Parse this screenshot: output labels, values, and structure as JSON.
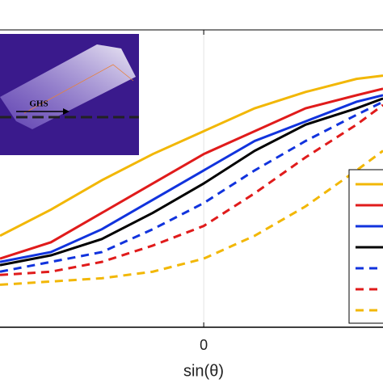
{
  "chart_data": {
    "type": "line",
    "x_label": "sin(θ)",
    "inset_text": "GHS",
    "x": [
      -1,
      -0.75,
      -0.5,
      -0.25,
      0,
      0.25,
      0.5,
      0.75,
      0.88
    ],
    "xlim": [
      -1,
      0.88
    ],
    "xticks": [
      0
    ],
    "ylim": [
      0,
      0.91
    ],
    "grid": true,
    "series": [
      {
        "color": "#f2b705",
        "dash": false,
        "values": [
          0.28,
          0.36,
          0.45,
          0.53,
          0.6,
          0.67,
          0.72,
          0.76,
          0.77
        ]
      },
      {
        "color": "#e01b1b",
        "dash": false,
        "values": [
          0.21,
          0.26,
          0.35,
          0.44,
          0.53,
          0.6,
          0.67,
          0.71,
          0.73
        ]
      },
      {
        "color": "#1133dd",
        "dash": false,
        "values": [
          0.2,
          0.23,
          0.3,
          0.39,
          0.48,
          0.57,
          0.63,
          0.69,
          0.71
        ]
      },
      {
        "color": "#000000",
        "dash": false,
        "values": [
          0.19,
          0.22,
          0.27,
          0.35,
          0.44,
          0.54,
          0.62,
          0.67,
          0.7
        ]
      },
      {
        "color": "#1133dd",
        "dash": true,
        "values": [
          0.17,
          0.2,
          0.23,
          0.3,
          0.38,
          0.48,
          0.57,
          0.65,
          0.69
        ]
      },
      {
        "color": "#e01b1b",
        "dash": true,
        "values": [
          0.16,
          0.17,
          0.2,
          0.25,
          0.31,
          0.41,
          0.52,
          0.62,
          0.68
        ]
      },
      {
        "color": "#f2b705",
        "dash": true,
        "values": [
          0.13,
          0.14,
          0.15,
          0.17,
          0.21,
          0.28,
          0.37,
          0.48,
          0.54
        ]
      }
    ]
  }
}
